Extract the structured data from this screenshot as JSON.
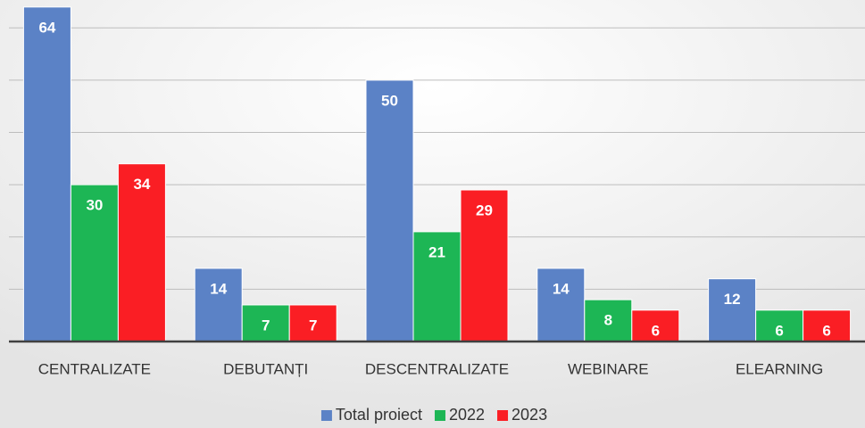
{
  "chart_data": {
    "type": "bar",
    "categories": [
      "CENTRALIZATE",
      "DEBUTANȚI",
      "DESCENTRALIZATE",
      "WEBINARE",
      "ELEARNING"
    ],
    "series": [
      {
        "name": "Total proiect",
        "color": "#5b82c6",
        "values": [
          64,
          14,
          50,
          14,
          12
        ]
      },
      {
        "name": "2022",
        "color": "#1db655",
        "values": [
          30,
          7,
          21,
          8,
          6
        ]
      },
      {
        "name": "2023",
        "color": "#fa1e24",
        "values": [
          34,
          7,
          29,
          6,
          6
        ]
      }
    ],
    "ylim": [
      0,
      65
    ],
    "yticks": [
      0,
      10,
      20,
      30,
      40,
      50,
      60
    ],
    "grid": true,
    "legend": "bottom"
  }
}
